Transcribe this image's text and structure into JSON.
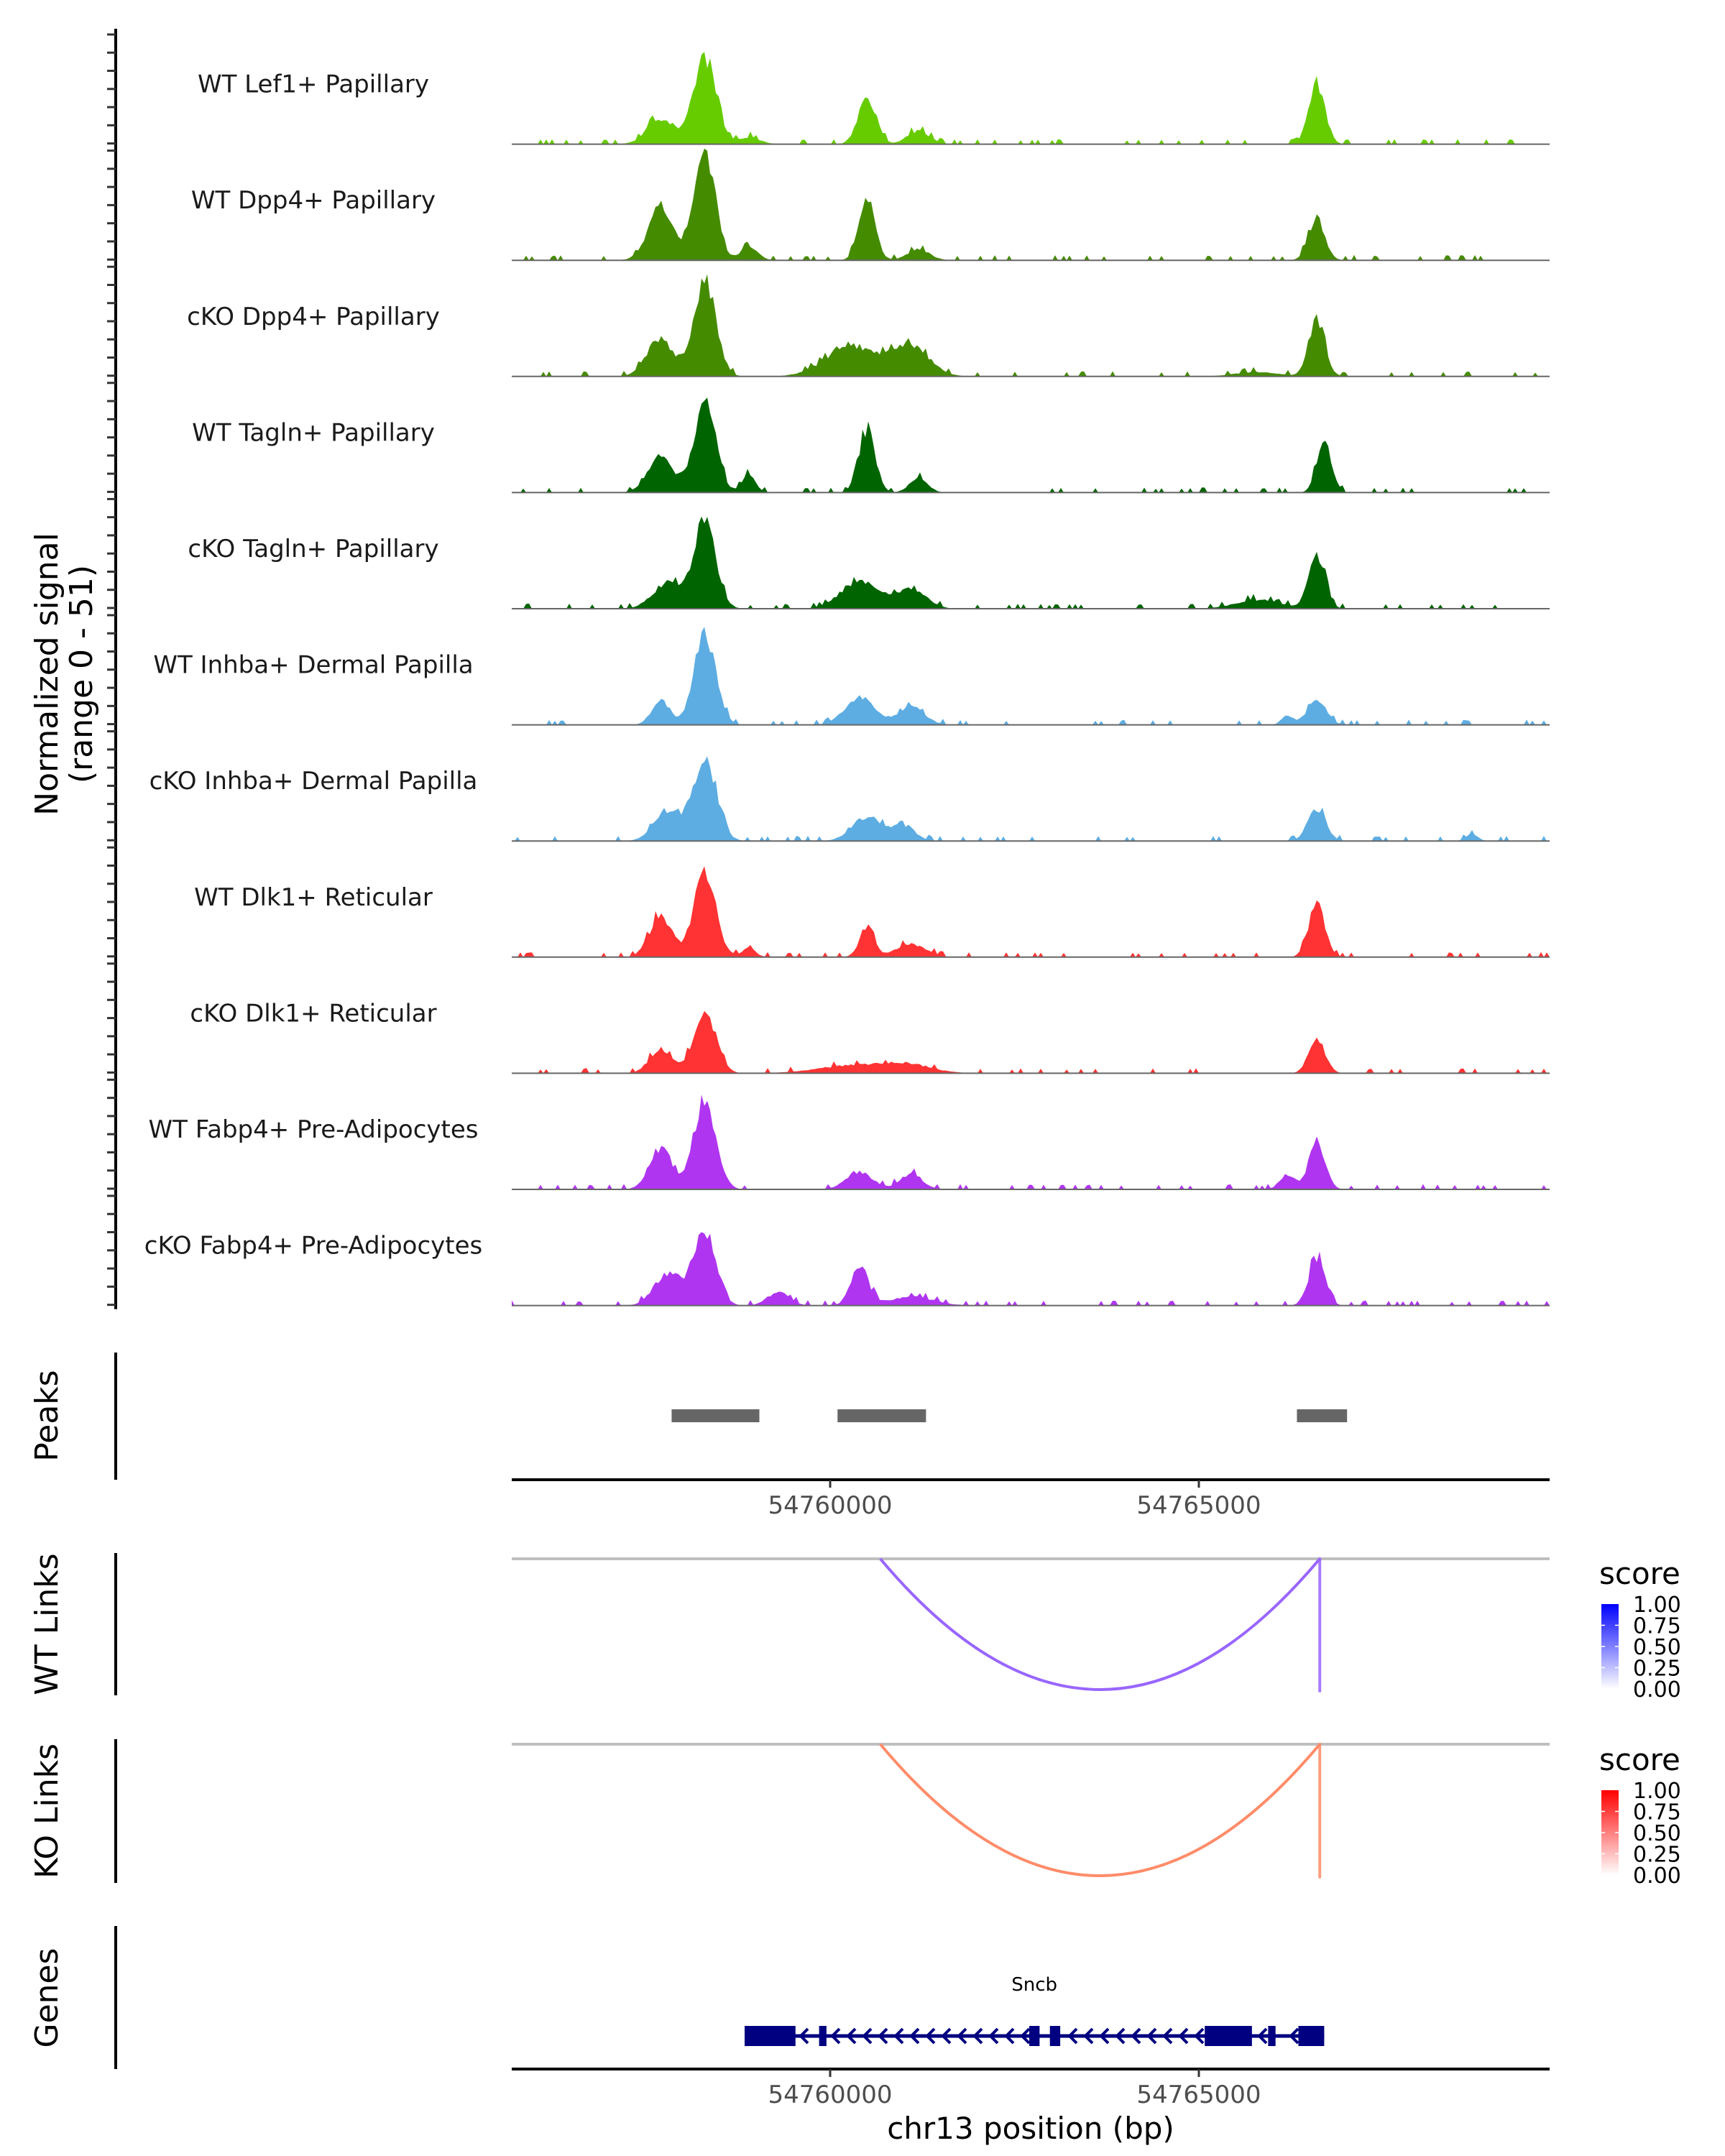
{
  "chart_data": {
    "type": "area",
    "title": "",
    "region": {
      "chrom": "chr13",
      "start": 54755682,
      "end": 54769757
    },
    "xlabel": "chr13 position (bp)",
    "x_ticks": [
      54760000,
      54765000
    ],
    "x_tick_labels": [
      "54760000",
      "54765000"
    ],
    "coverage": {
      "ylabel_line1": "Normalized signal",
      "ylabel_line2": "(range 0 - 51)",
      "ylim": [
        0,
        51
      ],
      "peaks_summary_note": "approximate peak heights read from figure (data units, 0-51 scale)",
      "tracks": [
        {
          "name": "WT Lef1+ Papillary",
          "color": "#66cc00",
          "peaks": [
            [
              54757700,
              12,
              180
            ],
            [
              54758300,
              40,
              150
            ],
            [
              54758900,
              3,
              150
            ],
            [
              54760500,
              22,
              120
            ],
            [
              54761200,
              6,
              150
            ],
            [
              54766600,
              28,
              110
            ]
          ]
        },
        {
          "name": "WT Dpp4+ Papillary",
          "color": "#458b00",
          "peaks": [
            [
              54757700,
              24,
              170
            ],
            [
              54758300,
              51,
              140
            ],
            [
              54758900,
              6,
              120
            ],
            [
              54760500,
              28,
              110
            ],
            [
              54761200,
              5,
              150
            ],
            [
              54766600,
              19,
              110
            ]
          ]
        },
        {
          "name": "cKO Dpp4+ Papillary",
          "color": "#458b00",
          "peaks": [
            [
              54757700,
              17,
              180
            ],
            [
              54758300,
              43,
              150
            ],
            [
              54760300,
              14,
              350
            ],
            [
              54761100,
              13,
              250
            ],
            [
              54766600,
              26,
              110
            ],
            [
              54765800,
              2,
              300
            ]
          ]
        },
        {
          "name": "WT Tagln+ Papillary",
          "color": "#006400",
          "peaks": [
            [
              54757700,
              16,
              170
            ],
            [
              54758300,
              40,
              150
            ],
            [
              54758900,
              8,
              90
            ],
            [
              54760500,
              29,
              110
            ],
            [
              54761200,
              7,
              120
            ],
            [
              54766700,
              24,
              100
            ]
          ]
        },
        {
          "name": "cKO Tagln+ Papillary",
          "color": "#006400",
          "peaks": [
            [
              54757800,
              12,
              200
            ],
            [
              54758300,
              39,
              150
            ],
            [
              54760400,
              13,
              250
            ],
            [
              54761100,
              9,
              200
            ],
            [
              54766600,
              25,
              110
            ],
            [
              54765800,
              4,
              300
            ]
          ]
        },
        {
          "name": "WT Inhba+ Dermal Papilla",
          "color": "#5dade2",
          "peaks": [
            [
              54757700,
              11,
              120
            ],
            [
              54758300,
              41,
              150
            ],
            [
              54760400,
              13,
              200
            ],
            [
              54761100,
              8,
              180
            ],
            [
              54766200,
              4,
              80
            ],
            [
              54766600,
              11,
              130
            ]
          ]
        },
        {
          "name": "cKO Inhba+ Dermal Papilla",
          "color": "#5dade2",
          "peaks": [
            [
              54757800,
              14,
              180
            ],
            [
              54758300,
              37,
              160
            ],
            [
              54760500,
              11,
              200
            ],
            [
              54761000,
              7,
              150
            ],
            [
              54766600,
              15,
              120
            ],
            [
              54768700,
              3,
              80
            ]
          ]
        },
        {
          "name": "WT Dlk1+ Reticular",
          "color": "#ff3333",
          "peaks": [
            [
              54757700,
              19,
              150
            ],
            [
              54758300,
              38,
              150
            ],
            [
              54758900,
              4,
              90
            ],
            [
              54760500,
              14,
              100
            ],
            [
              54761100,
              6,
              200
            ],
            [
              54766600,
              24,
              110
            ]
          ]
        },
        {
          "name": "cKO Dlk1+ Reticular",
          "color": "#ff3333",
          "peaks": [
            [
              54757700,
              11,
              150
            ],
            [
              54758300,
              28,
              150
            ],
            [
              54760400,
              4,
              500
            ],
            [
              54761100,
              3,
              300
            ],
            [
              54766600,
              16,
              110
            ]
          ]
        },
        {
          "name": "WT Fabp4+ Pre-Adipocytes",
          "color": "#b035f0",
          "peaks": [
            [
              54757700,
              19,
              150
            ],
            [
              54758300,
              41,
              150
            ],
            [
              54760400,
              8,
              180
            ],
            [
              54761100,
              7,
              150
            ],
            [
              54766200,
              7,
              100
            ],
            [
              54766600,
              22,
              110
            ]
          ]
        },
        {
          "name": "cKO Fabp4+ Pre-Adipocytes",
          "color": "#b035f0",
          "peaks": [
            [
              54757800,
              15,
              180
            ],
            [
              54758300,
              35,
              150
            ],
            [
              54759300,
              6,
              150
            ],
            [
              54760400,
              17,
              120
            ],
            [
              54761100,
              4,
              300
            ],
            [
              54766600,
              22,
              110
            ]
          ]
        }
      ]
    },
    "peaks_track": {
      "label": "Peaks",
      "color": "#666666",
      "regions": [
        [
          54757850,
          54759040
        ],
        [
          54760100,
          54761300
        ],
        [
          54766330,
          54767010
        ]
      ]
    },
    "links": [
      {
        "label": "WT Links",
        "start": 54760680,
        "end": 54766640,
        "score": 0.62,
        "color": "#9966ff",
        "legend": {
          "title": "score",
          "low_color": "#ffffff",
          "high_color": "#0000ff",
          "ticks": [
            "1.00",
            "0.75",
            "0.50",
            "0.25",
            "0.00"
          ]
        }
      },
      {
        "label": "KO Links",
        "start": 54760680,
        "end": 54766640,
        "score": 0.55,
        "color": "#ff8c69",
        "legend": {
          "title": "score",
          "low_color": "#ffffff",
          "high_color": "#ff0000",
          "ticks": [
            "1.00",
            "0.75",
            "0.50",
            "0.25",
            "0.00"
          ]
        }
      }
    ],
    "genes": {
      "label": "Genes",
      "color": "#000080",
      "items": [
        {
          "name": "Sncb",
          "strand": "-",
          "start": 54758840,
          "end": 54766700,
          "exons": [
            [
              54758840,
              54759530
            ],
            [
              54759850,
              54759950
            ],
            [
              54762700,
              54762840
            ],
            [
              54762980,
              54763120
            ],
            [
              54765080,
              54765720
            ],
            [
              54765940,
              54766040
            ],
            [
              54766350,
              54766700
            ]
          ]
        }
      ]
    }
  }
}
